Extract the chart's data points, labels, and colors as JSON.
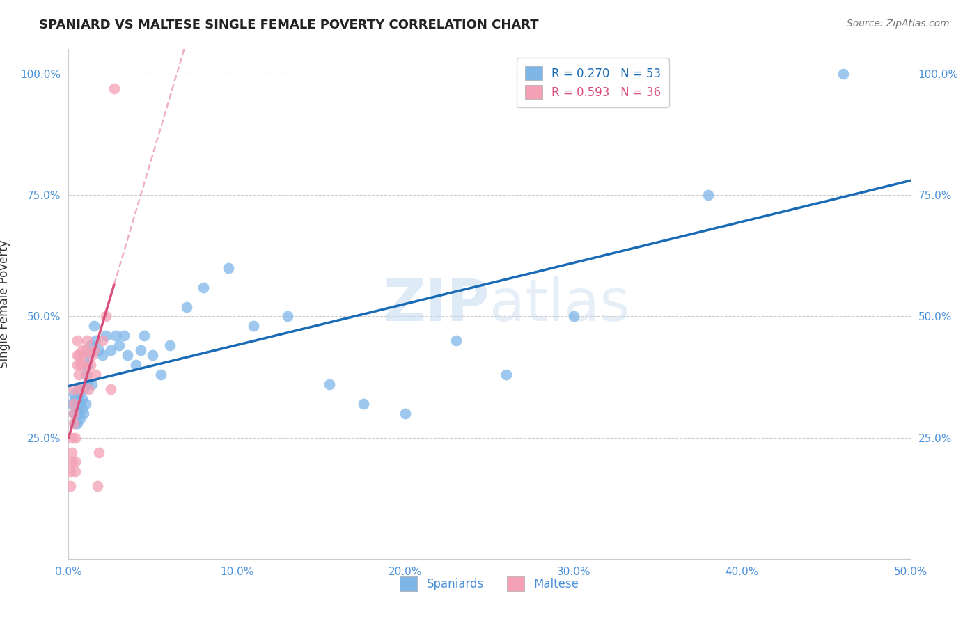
{
  "title": "SPANIARD VS MALTESE SINGLE FEMALE POVERTY CORRELATION CHART",
  "source": "Source: ZipAtlas.com",
  "ylabel": "Single Female Poverty",
  "xmin": 0.0,
  "xmax": 0.5,
  "ymin": 0.0,
  "ymax": 1.05,
  "legend_blue_r": "R = 0.270",
  "legend_blue_n": "N = 53",
  "legend_pink_r": "R = 0.593",
  "legend_pink_n": "N = 36",
  "legend_label_blue": "Spaniards",
  "legend_label_pink": "Maltese",
  "watermark_zip": "ZIP",
  "watermark_atlas": "atlas",
  "blue_color": "#7EB6E8",
  "pink_color": "#F4A0B5",
  "line_blue": "#1A6BB5",
  "line_pink": "#D94F7A",
  "spaniards_x": [
    0.002,
    0.003,
    0.003,
    0.004,
    0.004,
    0.005,
    0.005,
    0.005,
    0.006,
    0.006,
    0.006,
    0.007,
    0.007,
    0.008,
    0.008,
    0.009,
    0.009,
    0.01,
    0.01,
    0.011,
    0.011,
    0.012,
    0.013,
    0.014,
    0.015,
    0.016,
    0.018,
    0.02,
    0.022,
    0.025,
    0.028,
    0.03,
    0.033,
    0.035,
    0.04,
    0.043,
    0.045,
    0.05,
    0.055,
    0.06,
    0.07,
    0.08,
    0.095,
    0.11,
    0.13,
    0.155,
    0.175,
    0.2,
    0.23,
    0.26,
    0.3,
    0.38,
    0.46
  ],
  "spaniards_y": [
    0.32,
    0.3,
    0.34,
    0.28,
    0.33,
    0.3,
    0.32,
    0.28,
    0.33,
    0.3,
    0.35,
    0.29,
    0.32,
    0.31,
    0.33,
    0.35,
    0.3,
    0.38,
    0.32,
    0.4,
    0.36,
    0.42,
    0.44,
    0.36,
    0.48,
    0.45,
    0.43,
    0.42,
    0.46,
    0.43,
    0.46,
    0.44,
    0.46,
    0.42,
    0.4,
    0.43,
    0.46,
    0.42,
    0.38,
    0.44,
    0.52,
    0.56,
    0.6,
    0.48,
    0.5,
    0.36,
    0.32,
    0.3,
    0.45,
    0.38,
    0.5,
    0.75,
    1.0
  ],
  "maltese_x": [
    0.001,
    0.001,
    0.002,
    0.002,
    0.002,
    0.003,
    0.003,
    0.003,
    0.003,
    0.004,
    0.004,
    0.004,
    0.005,
    0.005,
    0.005,
    0.006,
    0.006,
    0.007,
    0.007,
    0.008,
    0.008,
    0.009,
    0.01,
    0.011,
    0.011,
    0.012,
    0.013,
    0.014,
    0.015,
    0.016,
    0.017,
    0.018,
    0.02,
    0.022,
    0.025,
    0.027
  ],
  "maltese_y": [
    0.15,
    0.18,
    0.2,
    0.22,
    0.25,
    0.28,
    0.3,
    0.32,
    0.35,
    0.18,
    0.2,
    0.25,
    0.4,
    0.42,
    0.45,
    0.38,
    0.42,
    0.35,
    0.4,
    0.42,
    0.43,
    0.4,
    0.43,
    0.45,
    0.38,
    0.35,
    0.4,
    0.42,
    0.43,
    0.38,
    0.15,
    0.22,
    0.45,
    0.5,
    0.35,
    0.97
  ]
}
